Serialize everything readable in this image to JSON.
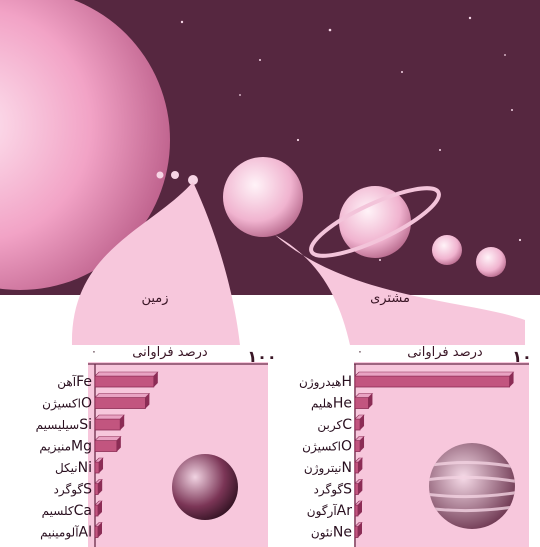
{
  "colors": {
    "space": "#5a2a45",
    "sun": "#f4a6c8",
    "callout": "#f7c7dc",
    "bar": "#c2557f",
    "bar_dark": "#8b2c55",
    "panel": "#ffffff"
  },
  "earth": {
    "label": "زمین",
    "axis_title": "درصد فراوانی",
    "tick_min": "۰",
    "tick_max": "۱۰۰",
    "icon": "earth-globe"
  },
  "jupiter": {
    "label": "مشتری",
    "axis_title": "درصد فراوانی",
    "tick_min": "۰",
    "tick_max": "۱۰",
    "icon": "jupiter-globe"
  },
  "chart_data": [
    {
      "type": "bar",
      "orientation": "horizontal",
      "title": "زمین",
      "xlabel": "درصد فراوانی",
      "xlim": [
        0,
        100
      ],
      "categories": [
        "Fe",
        "O",
        "Si",
        "Mg",
        "Ni",
        "S",
        "Ca",
        "Al"
      ],
      "category_names": [
        "آهن",
        "اکسیژن",
        "سیلیسیم",
        "منیزیم",
        "نیکل",
        "گوگرد",
        "کلسیم",
        "آلومینیم"
      ],
      "values": [
        35,
        30,
        15,
        13,
        2.4,
        1.9,
        1.1,
        1.1
      ]
    },
    {
      "type": "bar",
      "orientation": "horizontal",
      "title": "مشتری",
      "xlabel": "درصد فراوانی",
      "xlim": [
        0,
        10
      ],
      "categories": [
        "H",
        "He",
        "C",
        "O",
        "N",
        "S",
        "Ar",
        "Ne"
      ],
      "category_names": [
        "هیدروژن",
        "هلیم",
        "کربن",
        "اکسیژن",
        "نیتروژن",
        "گوگرد",
        "آرگون",
        "نئون"
      ],
      "values": [
        9.2,
        0.8,
        0.3,
        0.3,
        0.2,
        0.2,
        0.1,
        0.1
      ]
    }
  ]
}
